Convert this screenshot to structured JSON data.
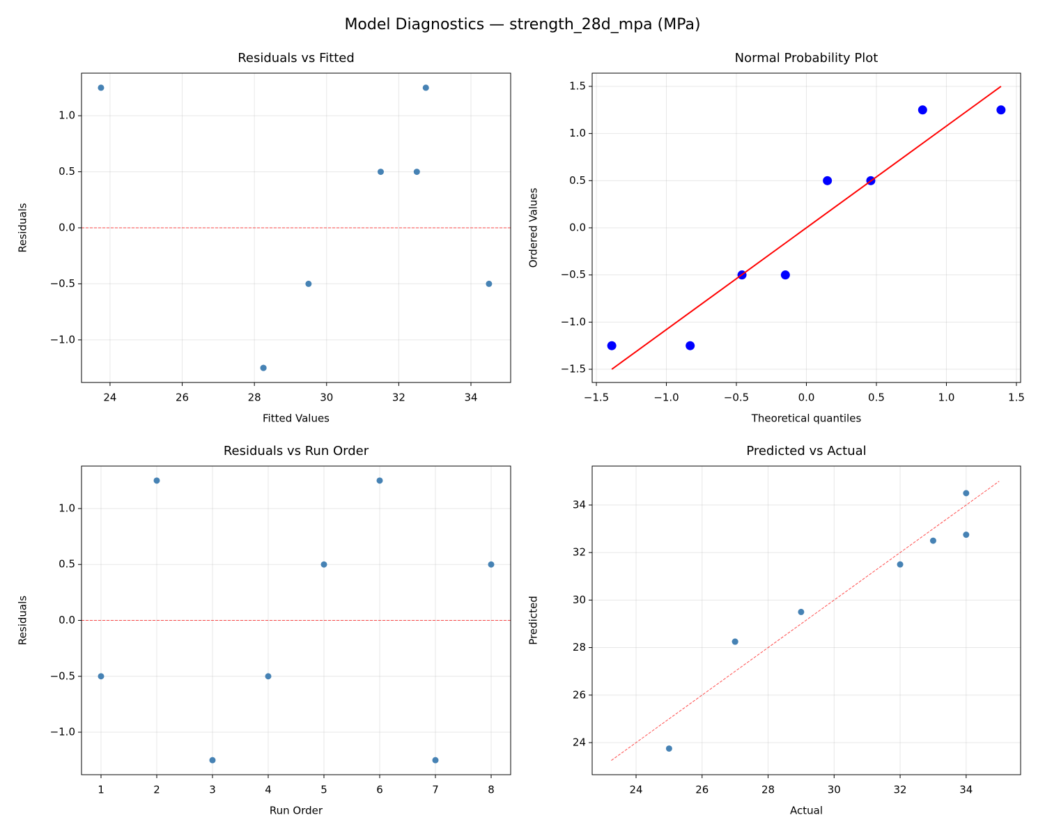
{
  "title": "Model Diagnostics — strength_28d_mpa (MPa)",
  "chart_data": [
    {
      "type": "scatter",
      "title": "Residuals vs Fitted",
      "x_label": "Fitted Values",
      "y_label": "Residuals",
      "grid": true,
      "xlim": [
        23.21,
        35.1
      ],
      "ylim": [
        -1.38,
        1.38
      ],
      "xticks": [
        24,
        26,
        28,
        30,
        32,
        34
      ],
      "yticks": [
        {
          "value": -1,
          "label": "−1.0"
        },
        {
          "value": -0.5,
          "label": "−0.5"
        },
        {
          "value": 0,
          "label": "0.0"
        },
        0.5,
        {
          "value": 1,
          "label": "1.0"
        }
      ],
      "hline": {
        "y": 0,
        "color": "#ff0000",
        "linestyle": "--"
      },
      "series": [
        {
          "type": "scatter",
          "color": "#4682b4",
          "x": [
            29.5,
            23.75,
            28.25,
            34.5,
            31.5,
            32.75,
            28.25,
            32.5
          ],
          "values": [
            -0.5,
            1.25,
            -1.25,
            -0.5,
            0.5,
            1.25,
            -1.25,
            0.5
          ]
        }
      ]
    },
    {
      "type": "scatter",
      "title": "Normal Probability Plot",
      "x_label": "Theoretical quantiles",
      "y_label": "Ordered Values",
      "grid": true,
      "xlim": [
        -1.53,
        1.53
      ],
      "ylim": [
        -1.64,
        1.64
      ],
      "xticks": [
        {
          "value": -1.5,
          "label": "−1.5"
        },
        {
          "value": -1,
          "label": "−1.0"
        },
        {
          "value": -0.5,
          "label": "−0.5"
        },
        {
          "value": 0,
          "label": "0.0"
        },
        0.5,
        {
          "value": 1,
          "label": "1.0"
        },
        1.5
      ],
      "yticks": [
        {
          "value": -1.5,
          "label": "−1.5"
        },
        {
          "value": -1,
          "label": "−1.0"
        },
        {
          "value": -0.5,
          "label": "−0.5"
        },
        {
          "value": 0,
          "label": "0.0"
        },
        0.5,
        {
          "value": 1,
          "label": "1.0"
        },
        1.5
      ],
      "series": [
        {
          "type": "scatter",
          "color": "#0000ff",
          "x": [
            -1.39,
            -0.83,
            -0.46,
            -0.15,
            0.15,
            0.46,
            0.83,
            1.39
          ],
          "values": [
            -1.25,
            -1.25,
            -0.5,
            -0.5,
            0.5,
            0.5,
            1.25,
            1.25
          ]
        },
        {
          "type": "line",
          "color": "#ff0000",
          "x": [
            -1.39,
            1.39
          ],
          "values": [
            -1.5,
            1.5
          ]
        }
      ]
    },
    {
      "type": "scatter",
      "title": "Residuals vs Run Order",
      "x_label": "Run Order",
      "y_label": "Residuals",
      "grid": true,
      "xlim": [
        0.65,
        8.35
      ],
      "ylim": [
        -1.38,
        1.38
      ],
      "xticks": [
        1,
        2,
        3,
        4,
        5,
        6,
        7,
        8
      ],
      "yticks": [
        {
          "value": -1,
          "label": "−1.0"
        },
        {
          "value": -0.5,
          "label": "−0.5"
        },
        {
          "value": 0,
          "label": "0.0"
        },
        0.5,
        {
          "value": 1,
          "label": "1.0"
        }
      ],
      "hline": {
        "y": 0,
        "color": "#ff0000",
        "linestyle": "--"
      },
      "series": [
        {
          "type": "scatter",
          "color": "#4682b4",
          "x": [
            1,
            2,
            3,
            4,
            5,
            6,
            7,
            8
          ],
          "values": [
            -0.5,
            1.25,
            -1.25,
            -0.5,
            0.5,
            1.25,
            -1.25,
            0.5
          ]
        }
      ]
    },
    {
      "type": "scatter",
      "title": "Predicted vs Actual",
      "x_label": "Actual",
      "y_label": "Predicted",
      "grid": true,
      "xlim": [
        22.67,
        35.65
      ],
      "ylim": [
        22.65,
        35.64
      ],
      "xticks": [
        24,
        26,
        28,
        30,
        32,
        34
      ],
      "yticks": [
        24,
        26,
        28,
        30,
        32,
        34
      ],
      "series": [
        {
          "type": "scatter",
          "color": "#4682b4",
          "x": [
            29,
            25,
            27,
            34,
            32,
            34,
            27,
            33
          ],
          "values": [
            29.5,
            23.75,
            28.25,
            34.5,
            31.5,
            32.75,
            28.25,
            32.5
          ]
        },
        {
          "type": "line",
          "color": "#ff0000",
          "linestyle": "--",
          "x": [
            23.25,
            35
          ],
          "values": [
            23.25,
            35
          ]
        }
      ]
    }
  ]
}
